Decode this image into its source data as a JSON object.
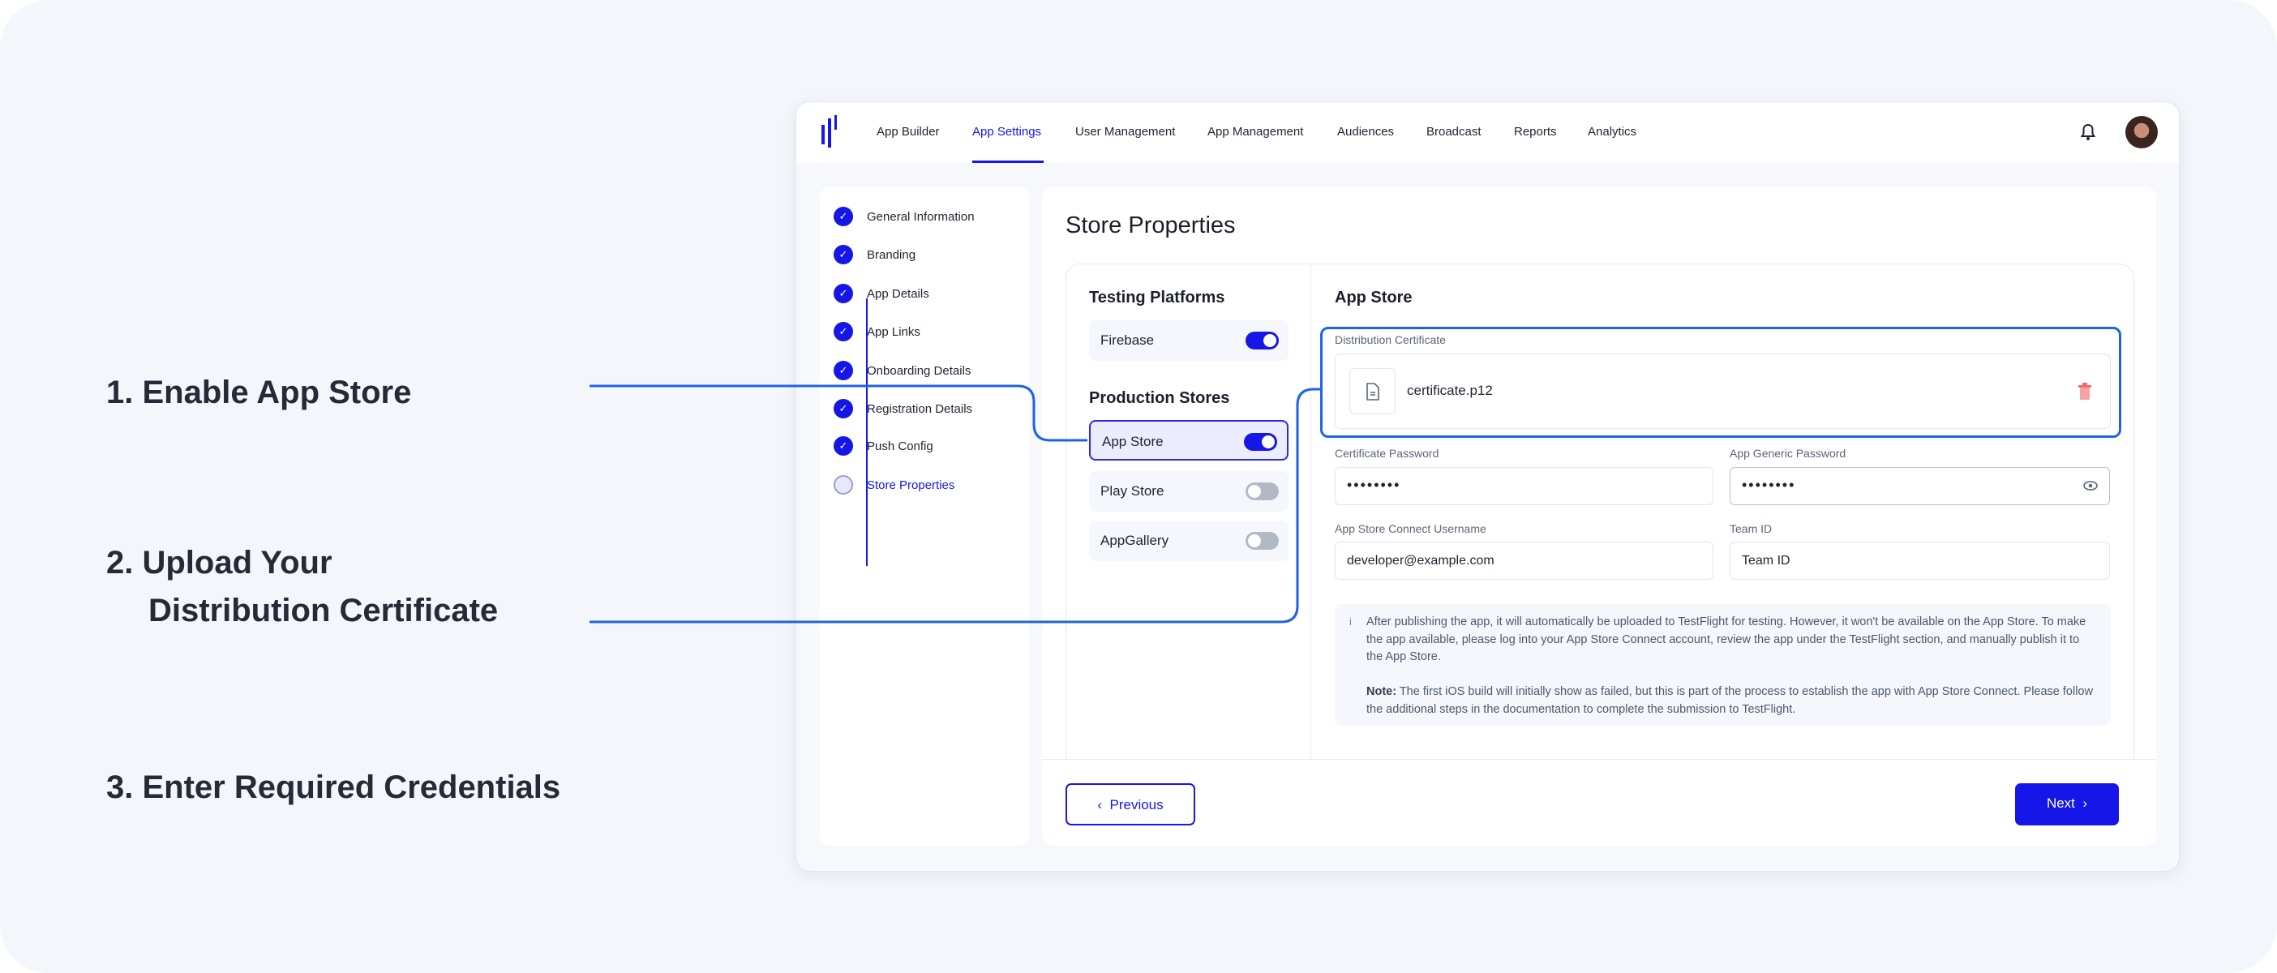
{
  "annotations": {
    "step1": "1. Enable App Store",
    "step2_line1": "2. Upload Your",
    "step2_line2": "Distribution Certificate",
    "step3": "3. Enter Required Credentials"
  },
  "nav": {
    "items": [
      "App Builder",
      "App Settings",
      "User Management",
      "App Management",
      "Audiences",
      "Broadcast",
      "Reports",
      "Analytics"
    ],
    "active": "App Settings"
  },
  "sidebar": {
    "steps": [
      "General Information",
      "Branding",
      "App Details",
      "App Links",
      "Onboarding Details",
      "Registration Details",
      "Push Config",
      "Store Properties"
    ],
    "current": "Store Properties",
    "check": "✓"
  },
  "main": {
    "title": "Store Properties",
    "testing_title": "Testing Platforms",
    "production_title": "Production Stores",
    "platforms": [
      {
        "label": "Firebase",
        "enabled": true
      },
      {
        "label": "App Store",
        "enabled": true,
        "selected": true
      },
      {
        "label": "Play Store",
        "enabled": false
      },
      {
        "label": "AppGallery",
        "enabled": false
      }
    ],
    "store_title": "App Store",
    "cert_label": "Distribution Certificate",
    "cert_file": "certificate.p12",
    "cert_password_label": "Certificate Password",
    "cert_password_value": "••••••••",
    "generic_password_label": "App Generic Password",
    "generic_password_value": "••••••••",
    "username_label": "App Store Connect Username",
    "username_value": "developer@example.com",
    "team_label": "Team ID",
    "team_value": "Team ID",
    "info_icon": "i",
    "info_text": "After publishing the app, it will automatically be uploaded to TestFlight for testing. However, it won't be available on the App Store. To make the app available, please log into your App Store Connect account, review the app under the TestFlight section, and manually publish it to the App Store.",
    "note_label": "Note:",
    "note_text": " The first iOS build will initially show as failed, but this is part of the process to establish the app with App Store Connect. Please follow the additional steps in the documentation to complete the submission to TestFlight.",
    "prev_label": "Previous",
    "next_label": "Next"
  },
  "colors": {
    "accent": "#1616e8",
    "connector": "#1d63e8",
    "delete": "#f08080"
  }
}
